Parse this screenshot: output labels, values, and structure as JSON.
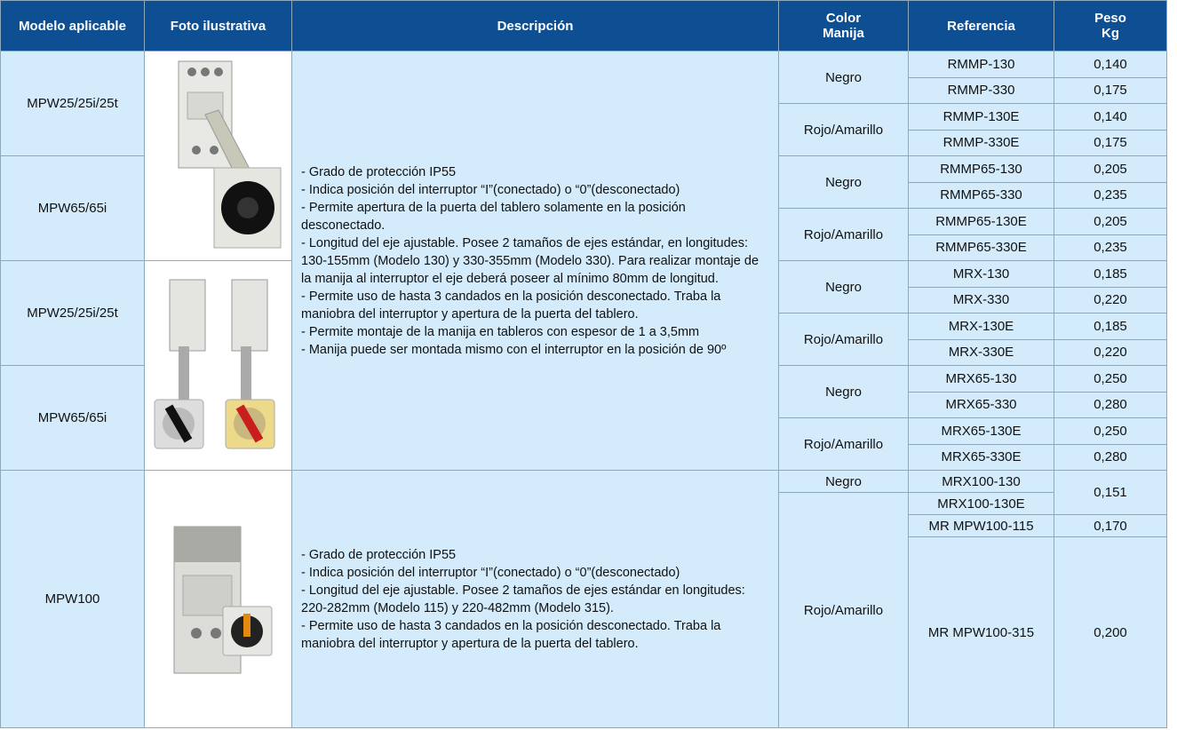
{
  "header": {
    "columns": [
      "Modelo aplicable",
      "Foto ilustrativa",
      "Descripción",
      "Color\nManija",
      "Referencia",
      "Peso\nKg"
    ]
  },
  "models": [
    "MPW25/25i/25t",
    "MPW65/65i",
    "MPW25/25i/25t",
    "MPW65/65i",
    "MPW100"
  ],
  "descriptions": [
    [
      "- Grado de protección IP55",
      "- Indica posición del interruptor “I”(conectado) o “0”(desconectado)",
      "- Permite apertura de la puerta del tablero solamente en la posición desconectado.",
      "- Longitud del eje ajustable. Posee 2 tamaños de ejes estándar, en longitudes: 130-155mm (Modelo 130) y 330-355mm  (Modelo 330). Para realizar montaje de la manija al interruptor el eje deberá poseer al mínimo 80mm  de longitud.",
      "- Permite uso de hasta 3 candados en la posición desconectado. Traba la maniobra del interruptor y apertura de la puerta del tablero.",
      "- Permite montaje de la manija en tableros con espesor de 1 a 3,5mm",
      "- Manija puede ser montada mismo con el interruptor en la posición de 90º"
    ],
    [
      "- Grado de protección IP55",
      "- Indica posición del interruptor “I”(conectado) o “0”(desconectado)",
      "- Longitud del eje ajustable. Posee 2 tamaños de ejes estándar en longitudes: 220-282mm (Modelo 115) y 220-482mm  (Modelo 315).",
      "- Permite uso de hasta 3 candados en la posición desconectado. Traba la maniobra del interruptor y apertura de la puerta del tablero."
    ]
  ],
  "colors": [
    "Negro",
    "Rojo/Amarillo",
    "Negro",
    "Rojo/Amarillo",
    "Negro",
    "Rojo/Amarillo",
    "Negro",
    "Rojo/Amarillo",
    "Negro",
    "Rojo/Amarillo"
  ],
  "references": [
    "RMMP-130",
    "RMMP-330",
    "RMMP-130E",
    "RMMP-330E",
    "RMMP65-130",
    "RMMP65-330",
    "RMMP65-130E",
    "RMMP65-330E",
    "MRX-130",
    "MRX-330",
    "MRX-130E",
    "MRX-330E",
    "MRX65-130",
    "MRX65-330",
    "MRX65-130E",
    "MRX65-330E",
    "MRX100-130",
    "MRX100-130E",
    "MR MPW100-115",
    "MR MPW100-315"
  ],
  "weights": [
    "0,140",
    "0,175",
    "0,140",
    "0,175",
    "0,205",
    "0,235",
    "0,205",
    "0,235",
    "0,185",
    "0,220",
    "0,185",
    "0,220",
    "0,250",
    "0,280",
    "0,250",
    "0,280",
    "0,151",
    "0,170",
    "0,200"
  ]
}
